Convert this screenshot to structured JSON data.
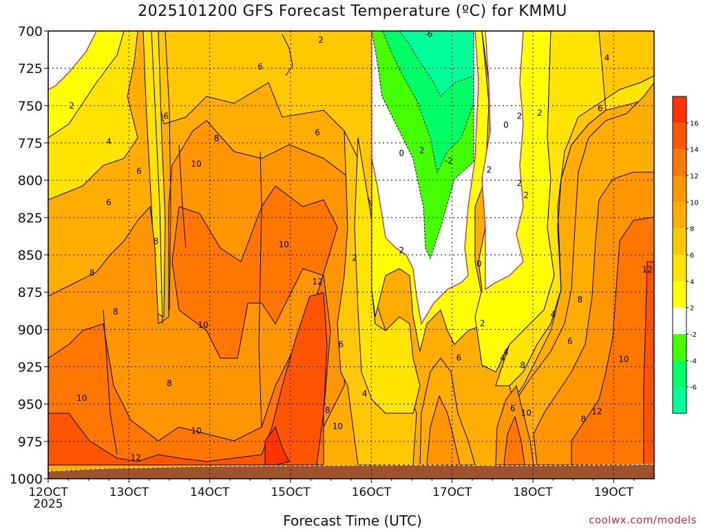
{
  "header": {
    "title": "2025101200 GFS Forecast Temperature (ºC) for KMMU"
  },
  "footer": {
    "credit": "coolwx.com/models"
  },
  "chart_data": {
    "type": "heatmap",
    "title": "2025101200 GFS Forecast Temperature (ºC) for KMMU",
    "xlabel": "Forecast Time (UTC)",
    "ylabel": "",
    "x_ticks": [
      "12OCT",
      "13OCT",
      "14OCT",
      "15OCT",
      "16OCT",
      "17OCT",
      "18OCT",
      "19OCT"
    ],
    "x_year_label": "2025",
    "xlim_hours": [
      0,
      180
    ],
    "y_ticks": [
      700,
      725,
      750,
      775,
      800,
      825,
      850,
      875,
      900,
      925,
      950,
      975,
      1000
    ],
    "ylim": [
      1000,
      700
    ],
    "y_unit": "hPa",
    "grid": true,
    "colorbar": {
      "labels": [
        "16",
        "14",
        "12",
        "10",
        "8",
        "6",
        "4",
        "2",
        "-2",
        "-4",
        "-6"
      ],
      "colors": [
        "#ff3300",
        "#ff5500",
        "#ff7700",
        "#ff9500",
        "#ffae00",
        "#ffc800",
        "#ffe400",
        "#ffff00",
        "#ffffff",
        "#44ff00",
        "#00ff66",
        "#00ff99"
      ]
    },
    "contour_labels": [
      {
        "t": 7,
        "p": 750,
        "v": "2"
      },
      {
        "t": 18,
        "p": 774,
        "v": "4"
      },
      {
        "t": 27,
        "p": 794,
        "v": "6"
      },
      {
        "t": 18,
        "p": 815,
        "v": "6"
      },
      {
        "t": 35,
        "p": 757,
        "v": "6"
      },
      {
        "t": 32,
        "p": 841,
        "v": "8"
      },
      {
        "t": 13,
        "p": 862,
        "v": "8"
      },
      {
        "t": 20,
        "p": 888,
        "v": "8"
      },
      {
        "t": 44,
        "p": 789,
        "v": "10"
      },
      {
        "t": 50,
        "p": 772,
        "v": "8"
      },
      {
        "t": 63,
        "p": 724,
        "v": "6"
      },
      {
        "t": 80,
        "p": 768,
        "v": "6"
      },
      {
        "t": 81,
        "p": 706,
        "v": "2"
      },
      {
        "t": 70,
        "p": 843,
        "v": "10"
      },
      {
        "t": 46,
        "p": 897,
        "v": "10"
      },
      {
        "t": 10,
        "p": 946,
        "v": "10"
      },
      {
        "t": 36,
        "p": 936,
        "v": "8"
      },
      {
        "t": 44,
        "p": 968,
        "v": "10"
      },
      {
        "t": 26,
        "p": 986,
        "v": "12"
      },
      {
        "t": 80,
        "p": 868,
        "v": "12"
      },
      {
        "t": 91,
        "p": 852,
        "v": "2"
      },
      {
        "t": 87,
        "p": 910,
        "v": "6"
      },
      {
        "t": 83,
        "p": 954,
        "v": "8"
      },
      {
        "t": 86,
        "p": 965,
        "v": "10"
      },
      {
        "t": 94,
        "p": 943,
        "v": "4"
      },
      {
        "t": 105,
        "p": 782,
        "v": "0"
      },
      {
        "t": 111,
        "p": 780,
        "v": "2"
      },
      {
        "t": 105,
        "p": 847,
        "v": "2"
      },
      {
        "t": 113,
        "p": 702,
        "v": "-6"
      },
      {
        "t": 119,
        "p": 787,
        "v": "-2"
      },
      {
        "t": 122,
        "p": 919,
        "v": "6"
      },
      {
        "t": 131,
        "p": 793,
        "v": "2"
      },
      {
        "t": 128,
        "p": 856,
        "v": "0"
      },
      {
        "t": 129,
        "p": 896,
        "v": "2"
      },
      {
        "t": 135,
        "p": 919,
        "v": "4"
      },
      {
        "t": 136,
        "p": 763,
        "v": "0"
      },
      {
        "t": 140,
        "p": 757,
        "v": "2"
      },
      {
        "t": 140,
        "p": 802,
        "v": "2"
      },
      {
        "t": 142,
        "p": 810,
        "v": "2"
      },
      {
        "t": 136,
        "p": 915,
        "v": "4"
      },
      {
        "t": 141,
        "p": 924,
        "v": "8"
      },
      {
        "t": 138,
        "p": 953,
        "v": "6"
      },
      {
        "t": 142,
        "p": 956,
        "v": "10"
      },
      {
        "t": 146,
        "p": 755,
        "v": "2"
      },
      {
        "t": 150,
        "p": 890,
        "v": "4"
      },
      {
        "t": 155,
        "p": 908,
        "v": "6"
      },
      {
        "t": 158,
        "p": 880,
        "v": "8"
      },
      {
        "t": 159,
        "p": 960,
        "v": "8"
      },
      {
        "t": 163,
        "p": 955,
        "v": "12"
      },
      {
        "t": 166,
        "p": 718,
        "v": "4"
      },
      {
        "t": 164,
        "p": 752,
        "v": "6"
      },
      {
        "t": 171,
        "p": 920,
        "v": "10"
      },
      {
        "t": 178,
        "p": 860,
        "v": "12"
      }
    ]
  }
}
